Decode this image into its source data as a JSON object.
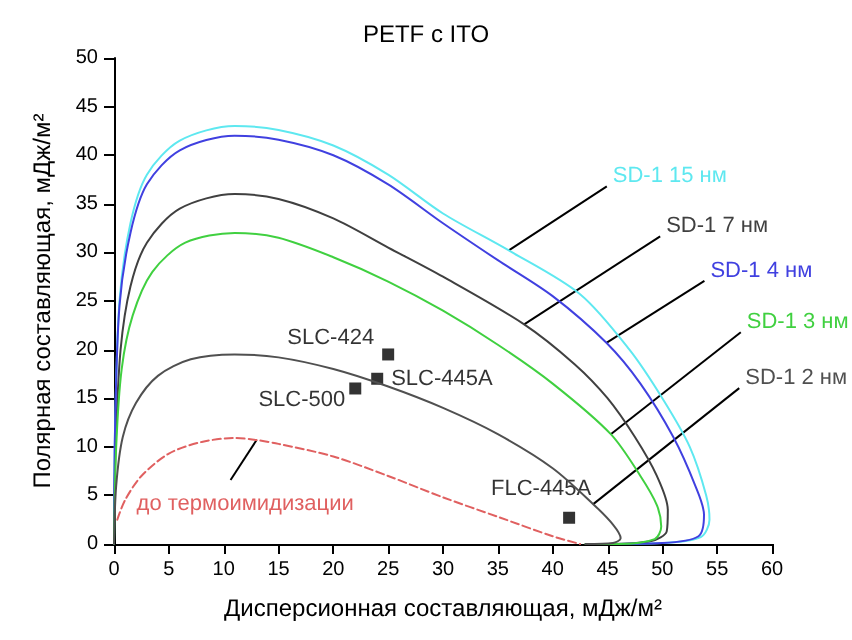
{
  "chart_data": {
    "type": "line",
    "title": "PETF с ITO",
    "xlabel": "Дисперсионная составляющая, мДж/м²",
    "ylabel": "Полярная составляющая, мДж/м²",
    "xlim": [
      0,
      60
    ],
    "xticks": [
      0,
      5,
      10,
      15,
      20,
      25,
      30,
      35,
      40,
      45,
      50,
      55,
      60
    ],
    "ylim": [
      0,
      50
    ],
    "yticks": [
      0,
      5,
      10,
      15,
      20,
      25,
      30,
      35,
      40,
      45,
      50
    ],
    "grid": false,
    "legend": false,
    "marker": "none",
    "line_style": "solid",
    "series": [
      {
        "name": "SD-1 15 нм",
        "color": "#5ee8f0",
        "x": [
          0,
          0.1,
          0.5,
          1.5,
          3,
          6,
          11,
          15,
          20,
          25,
          30,
          36,
          42.5,
          47,
          50,
          52.5,
          54,
          54.3,
          53.5,
          50,
          44
        ],
        "values": [
          0,
          12,
          25,
          33,
          38,
          41.5,
          43,
          42.6,
          41,
          38,
          34,
          30.2,
          25.7,
          20,
          15,
          10,
          5,
          2.5,
          0.7,
          0.1,
          0
        ]
      },
      {
        "name": "SD-1 7 нм",
        "color": "#404040",
        "x": [
          0,
          0.15,
          0.6,
          1.5,
          3,
          6,
          11,
          15,
          20,
          25,
          30,
          37.4,
          42,
          45,
          47.5,
          49.5,
          50.5,
          50.4,
          49,
          45,
          43
        ],
        "values": [
          0,
          10,
          20,
          26.5,
          31,
          34.5,
          36,
          35.5,
          33.5,
          30.5,
          27.5,
          22.6,
          18.5,
          15,
          11,
          7,
          3.5,
          1.3,
          0.3,
          0,
          0
        ]
      },
      {
        "name": "SD-1 4 нм",
        "color": "#4040e0",
        "x": [
          0,
          0.1,
          0.5,
          1.5,
          3,
          6,
          11,
          15,
          20,
          25,
          30,
          35,
          40,
          44.9,
          48,
          51,
          53,
          53.8,
          53.3,
          50,
          44
        ],
        "values": [
          0,
          12,
          24.5,
          32,
          37,
          40.5,
          42,
          41.6,
          40,
          37,
          33,
          29.2,
          25.5,
          20.7,
          16.5,
          11,
          6,
          3,
          0.8,
          0.1,
          0
        ]
      },
      {
        "name": "SD-1 3 нм",
        "color": "#40d040",
        "x": [
          0,
          0.2,
          0.7,
          1.7,
          3.5,
          6.5,
          11,
          15,
          20,
          25,
          30,
          35,
          40,
          45.3,
          48,
          49.5,
          49.9,
          49.3,
          46,
          43
        ],
        "values": [
          0,
          10,
          18,
          23.5,
          28,
          31,
          32,
          31.5,
          29.5,
          27,
          24,
          20.5,
          16.5,
          11.3,
          7,
          4,
          1.8,
          0.5,
          0,
          0
        ]
      },
      {
        "name": "SD-1 2 нм",
        "color": "#505050",
        "x": [
          0,
          0.2,
          0.8,
          2,
          4,
          7,
          11,
          15,
          20,
          25,
          30,
          35,
          40,
          43.7,
          45.5,
          46.2,
          45.5,
          43
        ],
        "values": [
          0,
          6,
          11,
          14.5,
          17.3,
          19,
          19.5,
          19.2,
          18,
          16.2,
          14,
          11.3,
          7.8,
          4.1,
          2,
          0.6,
          0.1,
          0
        ]
      },
      {
        "name": "до термоимидизации",
        "color": "#e06060",
        "line_style": "dashed",
        "x": [
          0.3,
          1,
          2.5,
          5,
          8,
          11,
          13,
          15,
          20,
          25,
          30,
          35,
          40,
          42.5
        ],
        "values": [
          2.5,
          4.5,
          7,
          9.3,
          10.5,
          10.9,
          10.7,
          10.3,
          9,
          7,
          4.8,
          2.8,
          0.8,
          0
        ]
      },
      {
        "type": "scatter",
        "marker": "square",
        "color": "#000000",
        "x": [
          25,
          24,
          22,
          41.5
        ],
        "values": [
          19.5,
          17,
          16,
          2.7
        ]
      }
    ],
    "annotations": [
      {
        "text": "SLC-424",
        "x": 25,
        "y": 19.5
      },
      {
        "text": "SLC-445A",
        "x": 24,
        "y": 17
      },
      {
        "text": "SLC-500",
        "x": 22,
        "y": 16
      },
      {
        "text": "FLC-445A",
        "x": 41.5,
        "y": 2.7
      }
    ]
  }
}
